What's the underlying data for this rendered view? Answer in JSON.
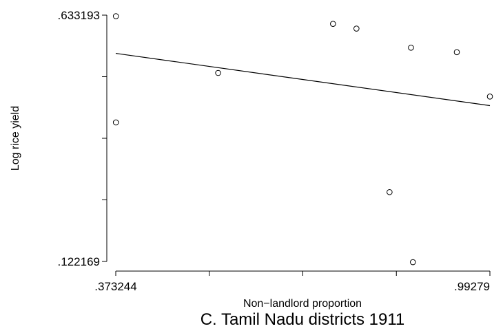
{
  "chart_data": {
    "type": "scatter",
    "title": "C. Tamil Nadu districts 1911",
    "xlabel": "Non−landlord proportion",
    "ylabel": "Log rice yield",
    "xlim": [
      0.373244,
      0.99279
    ],
    "ylim": [
      0.122169,
      0.633193
    ],
    "x_tick_labels": [
      ".373244",
      ".99279"
    ],
    "y_tick_labels": [
      ".633193",
      ".122169"
    ],
    "grid": false,
    "legend": "none",
    "points": [
      {
        "x": 0.3735,
        "y": 0.631
      },
      {
        "x": 0.3735,
        "y": 0.4106
      },
      {
        "x": 0.5428,
        "y": 0.5133
      },
      {
        "x": 0.733,
        "y": 0.6151
      },
      {
        "x": 0.7718,
        "y": 0.6053
      },
      {
        "x": 0.8266,
        "y": 0.266
      },
      {
        "x": 0.8621,
        "y": 0.5656
      },
      {
        "x": 0.8653,
        "y": 0.1207
      },
      {
        "x": 0.938,
        "y": 0.5564
      },
      {
        "x": 0.9928,
        "y": 0.4643
      }
    ],
    "fit_line": {
      "x": [
        0.373244,
        0.99279
      ],
      "y": [
        0.5539,
        0.4455
      ]
    },
    "colors": {
      "axis": "#000000",
      "marker_stroke": "#000000",
      "fit_line": "#000000"
    }
  }
}
